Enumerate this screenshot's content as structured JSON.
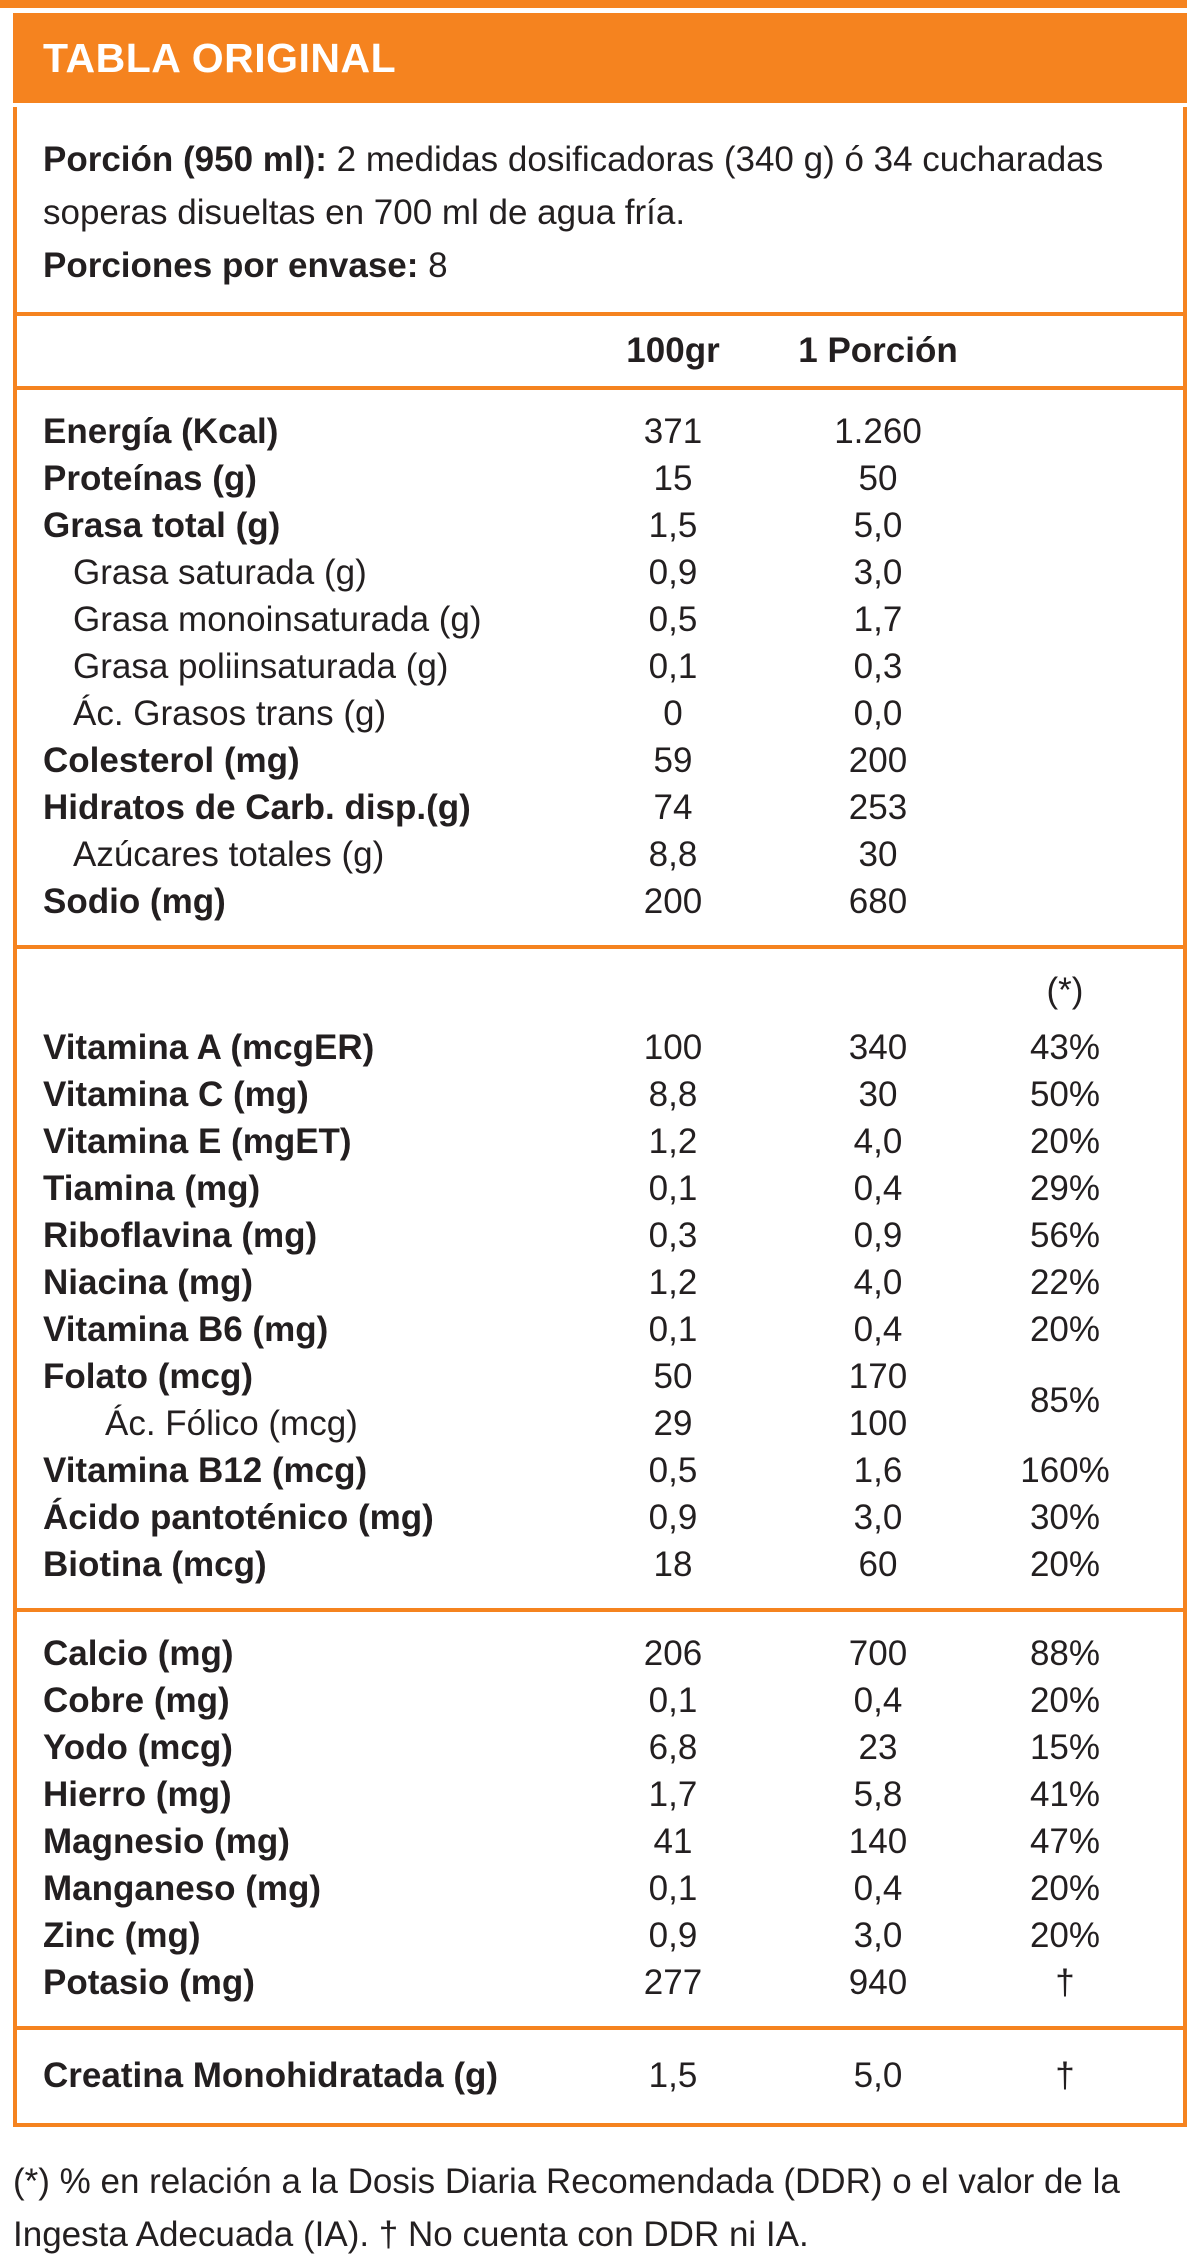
{
  "header": {
    "title": "TABLA ORIGINAL"
  },
  "colors": {
    "accent_orange": "#F5831F",
    "header_text": "#FFFFFF",
    "body_text": "#231F20"
  },
  "serving": {
    "portion_label": "Porción (950 ml):",
    "portion_text": " 2 medidas dosificadoras (340 g) ó 34 cucharadas soperas disueltas en 700 ml de agua fría.",
    "servings_label": "Porciones por envase:",
    "servings_value": " 8"
  },
  "columns": {
    "col_100g": "100gr",
    "col_portion": "1 Porción",
    "col_pct_header": "(*)"
  },
  "table": {
    "sections": [
      {
        "id": "macros",
        "rows": [
          {
            "label": "Energía (Kcal)",
            "v100": "371",
            "vpor": "1.260",
            "pct": "",
            "style": "bold"
          },
          {
            "label": "Proteínas (g)",
            "v100": "15",
            "vpor": "50",
            "pct": "",
            "style": "bold"
          },
          {
            "label": "Grasa total (g)",
            "v100": "1,5",
            "vpor": "5,0",
            "pct": "",
            "style": "bold"
          },
          {
            "label": "Grasa saturada (g)",
            "v100": "0,9",
            "vpor": "3,0",
            "pct": "",
            "style": "indent"
          },
          {
            "label": "Grasa monoinsaturada (g)",
            "v100": "0,5",
            "vpor": "1,7",
            "pct": "",
            "style": "indent"
          },
          {
            "label": "Grasa poliinsaturada (g)",
            "v100": "0,1",
            "vpor": "0,3",
            "pct": "",
            "style": "indent"
          },
          {
            "label": "Ác. Grasos trans (g)",
            "v100": "0",
            "vpor": "0,0",
            "pct": "",
            "style": "indent"
          },
          {
            "label": "Colesterol (mg)",
            "v100": "59",
            "vpor": "200",
            "pct": "",
            "style": "bold"
          },
          {
            "label": "Hidratos de Carb. disp.(g)",
            "v100": "74",
            "vpor": "253",
            "pct": "",
            "style": "bold"
          },
          {
            "label": "Azúcares totales (g)",
            "v100": "8,8",
            "vpor": "30",
            "pct": "",
            "style": "indent"
          },
          {
            "label": "Sodio (mg)",
            "v100": "200",
            "vpor": "680",
            "pct": "",
            "style": "bold"
          }
        ]
      },
      {
        "id": "vitamins",
        "rows": [
          {
            "label": "Vitamina A (mcgER)",
            "v100": "100",
            "vpor": "340",
            "pct": "43%",
            "style": "bold"
          },
          {
            "label": "Vitamina C (mg)",
            "v100": "8,8",
            "vpor": "30",
            "pct": "50%",
            "style": "bold"
          },
          {
            "label": "Vitamina E (mgET)",
            "v100": "1,2",
            "vpor": "4,0",
            "pct": "20%",
            "style": "bold"
          },
          {
            "label": "Tiamina (mg)",
            "v100": "0,1",
            "vpor": "0,4",
            "pct": "29%",
            "style": "bold"
          },
          {
            "label": "Riboflavina (mg)",
            "v100": "0,3",
            "vpor": "0,9",
            "pct": "56%",
            "style": "bold"
          },
          {
            "label": "Niacina (mg)",
            "v100": "1,2",
            "vpor": "4,0",
            "pct": "22%",
            "style": "bold"
          },
          {
            "label": "Vitamina B6 (mg)",
            "v100": "0,1",
            "vpor": "0,4",
            "pct": "20%",
            "style": "bold"
          },
          {
            "group_pct": "85%",
            "group": [
              {
                "label": "Folato (mcg)",
                "v100": "50",
                "vpor": "170",
                "style": "bold"
              },
              {
                "label": "Ác. Fólico (mcg)",
                "v100": "29",
                "vpor": "100",
                "style": "indent2"
              }
            ]
          },
          {
            "label": "Vitamina B12 (mcg)",
            "v100": "0,5",
            "vpor": "1,6",
            "pct": "160%",
            "style": "bold"
          },
          {
            "label": "Ácido pantoténico (mg)",
            "v100": "0,9",
            "vpor": "3,0",
            "pct": "30%",
            "style": "bold"
          },
          {
            "label": "Biotina (mcg)",
            "v100": "18",
            "vpor": "60",
            "pct": "20%",
            "style": "bold"
          }
        ]
      },
      {
        "id": "minerals",
        "rows": [
          {
            "label": "Calcio (mg)",
            "v100": "206",
            "vpor": "700",
            "pct": "88%",
            "style": "bold"
          },
          {
            "label": "Cobre (mg)",
            "v100": "0,1",
            "vpor": "0,4",
            "pct": "20%",
            "style": "bold"
          },
          {
            "label": "Yodo (mcg)",
            "v100": "6,8",
            "vpor": "23",
            "pct": "15%",
            "style": "bold"
          },
          {
            "label": "Hierro (mg)",
            "v100": "1,7",
            "vpor": "5,8",
            "pct": "41%",
            "style": "bold"
          },
          {
            "label": "Magnesio (mg)",
            "v100": "41",
            "vpor": "140",
            "pct": "47%",
            "style": "bold"
          },
          {
            "label": "Manganeso (mg)",
            "v100": "0,1",
            "vpor": "0,4",
            "pct": "20%",
            "style": "bold"
          },
          {
            "label": "Zinc (mg)",
            "v100": "0,9",
            "vpor": "3,0",
            "pct": "20%",
            "style": "bold"
          },
          {
            "label": "Potasio (mg)",
            "v100": "277",
            "vpor": "940",
            "pct": "†",
            "style": "bold"
          }
        ]
      },
      {
        "id": "creatine",
        "rows": [
          {
            "label": "Creatina Monohidratada (g)",
            "v100": "1,5",
            "vpor": "5,0",
            "pct": "†",
            "style": "bold"
          }
        ]
      }
    ]
  },
  "footer": {
    "note": "(*) % en relación a la Dosis Diaria Recomendada (DDR) o el valor de la Ingesta Adecuada (IA). † No cuenta con DDR ni IA."
  }
}
